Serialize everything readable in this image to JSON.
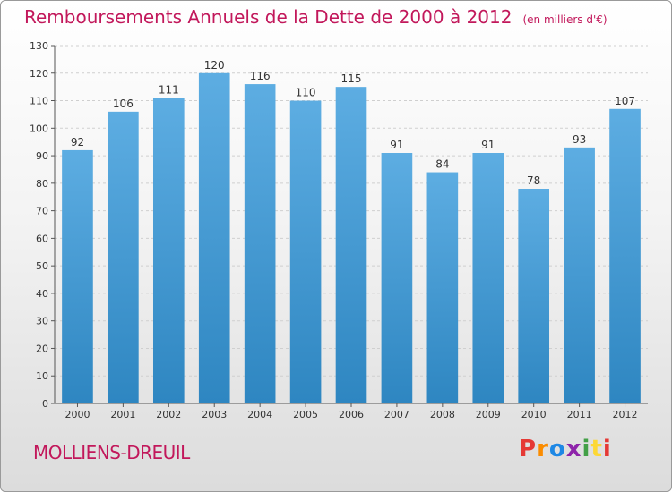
{
  "header": {
    "title": "Remboursements Annuels de la Dette de 2000 à 2012",
    "subtitle": "(en milliers d'€)"
  },
  "footer": {
    "commune": "MOLLIENS-DREUIL",
    "logo_text": "Proxiti"
  },
  "colors": {
    "bar_top": "#5dade2",
    "bar_bottom": "#2e86c1",
    "title": "#c2185b",
    "grid": "#cfcfcf"
  },
  "chart_data": {
    "type": "bar",
    "title": "Remboursements Annuels de la Dette de 2000 à 2012",
    "subtitle": "(en milliers d'€)",
    "categories": [
      "2000",
      "2001",
      "2002",
      "2003",
      "2004",
      "2005",
      "2006",
      "2007",
      "2008",
      "2009",
      "2010",
      "2011",
      "2012"
    ],
    "values": [
      92,
      106,
      111,
      120,
      116,
      110,
      115,
      91,
      84,
      91,
      78,
      93,
      107
    ],
    "ylim": [
      0,
      130
    ],
    "yticks": [
      0,
      10,
      20,
      30,
      40,
      50,
      60,
      70,
      80,
      90,
      100,
      110,
      120,
      130
    ],
    "grid": true,
    "data_labels": true
  }
}
